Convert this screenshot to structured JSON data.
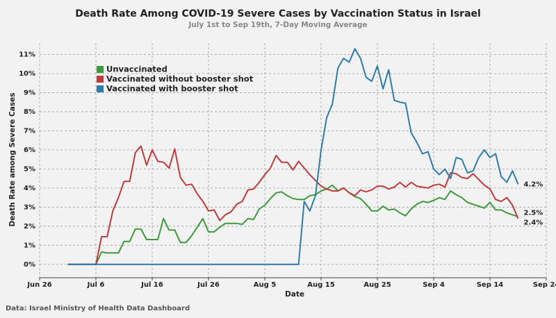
{
  "chart_data": {
    "type": "line",
    "title": "Death Rate Among COVID-19 Severe Cases by Vaccination Status in Israel",
    "subtitle": "July 1st to Sep 19th, 7-Day Moving Average",
    "x_label": "Date",
    "y_label": "Death Rate among Severe Cases",
    "source": "Data: Israel Ministry of Health Data Dashboard",
    "grid": true,
    "legend": "upper left",
    "xlim": [
      "Jun 26",
      "Sep 24"
    ],
    "xticks": [
      "Jun 26",
      "Jul 6",
      "Jul 16",
      "Jul 26",
      "Aug 5",
      "Aug 15",
      "Aug 25",
      "Sep 4",
      "Sep 14",
      "Sep 24"
    ],
    "ylim": [
      -0.7,
      11.6
    ],
    "yticks": [
      {
        "value": 0,
        "label": "0%"
      },
      {
        "value": 1,
        "label": "1%"
      },
      {
        "value": 2,
        "label": "2%"
      },
      {
        "value": 3,
        "label": "3%"
      },
      {
        "value": 4,
        "label": "4%"
      },
      {
        "value": 5,
        "label": "5%"
      },
      {
        "value": 6,
        "label": "6%"
      },
      {
        "value": 7,
        "label": "7%"
      },
      {
        "value": 8,
        "label": "8%"
      },
      {
        "value": 9,
        "label": "9%"
      },
      {
        "value": 10,
        "label": "10%"
      },
      {
        "value": 11,
        "label": "11%"
      }
    ],
    "x": [
      "Jul 1",
      "Jul 2",
      "Jul 3",
      "Jul 4",
      "Jul 5",
      "Jul 6",
      "Jul 7",
      "Jul 8",
      "Jul 9",
      "Jul 10",
      "Jul 11",
      "Jul 12",
      "Jul 13",
      "Jul 14",
      "Jul 15",
      "Jul 16",
      "Jul 17",
      "Jul 18",
      "Jul 19",
      "Jul 20",
      "Jul 21",
      "Jul 22",
      "Jul 23",
      "Jul 24",
      "Jul 25",
      "Jul 26",
      "Jul 27",
      "Jul 28",
      "Jul 29",
      "Jul 30",
      "Jul 31",
      "Aug 1",
      "Aug 2",
      "Aug 3",
      "Aug 4",
      "Aug 5",
      "Aug 6",
      "Aug 7",
      "Aug 8",
      "Aug 9",
      "Aug 10",
      "Aug 11",
      "Aug 12",
      "Aug 13",
      "Aug 14",
      "Aug 15",
      "Aug 16",
      "Aug 17",
      "Aug 18",
      "Aug 19",
      "Aug 20",
      "Aug 21",
      "Aug 22",
      "Aug 23",
      "Aug 24",
      "Aug 25",
      "Aug 26",
      "Aug 27",
      "Aug 28",
      "Aug 29",
      "Aug 30",
      "Aug 31",
      "Sep 1",
      "Sep 2",
      "Sep 3",
      "Sep 4",
      "Sep 5",
      "Sep 6",
      "Sep 7",
      "Sep 8",
      "Sep 9",
      "Sep 10",
      "Sep 11",
      "Sep 12",
      "Sep 13",
      "Sep 14",
      "Sep 15",
      "Sep 16",
      "Sep 17",
      "Sep 18",
      "Sep 19"
    ],
    "series": [
      {
        "name": "Unvaccinated",
        "color": "#3c9a3c",
        "end_label": "2.5%",
        "values": [
          0,
          0,
          0,
          0,
          0,
          0,
          0.65,
          0.6,
          0.6,
          0.6,
          1.2,
          1.2,
          1.85,
          1.85,
          1.3,
          1.3,
          1.3,
          2.4,
          1.8,
          1.8,
          1.15,
          1.15,
          1.5,
          1.95,
          2.4,
          1.7,
          1.7,
          1.95,
          2.15,
          2.15,
          2.15,
          2.1,
          2.4,
          2.35,
          2.9,
          3.1,
          3.45,
          3.75,
          3.8,
          3.6,
          3.45,
          3.4,
          3.4,
          3.6,
          3.65,
          3.85,
          3.95,
          4.15,
          3.85,
          4.0,
          3.75,
          3.55,
          3.45,
          3.15,
          2.8,
          2.8,
          3.05,
          2.85,
          2.9,
          2.7,
          2.55,
          2.9,
          3.15,
          3.3,
          3.25,
          3.35,
          3.5,
          3.4,
          3.85,
          3.65,
          3.5,
          3.25,
          3.15,
          3.05,
          2.95,
          3.25,
          2.85,
          2.85,
          2.7,
          2.6,
          2.5
        ]
      },
      {
        "name": "Vaccinated without booster shot",
        "color": "#c0393b",
        "end_label": "2.4%",
        "values": [
          0,
          0,
          0,
          0,
          0,
          0,
          1.45,
          1.45,
          2.8,
          3.5,
          4.35,
          4.35,
          5.85,
          6.2,
          5.2,
          6.0,
          5.4,
          5.35,
          5.05,
          6.05,
          4.55,
          4.15,
          4.2,
          3.7,
          3.3,
          2.8,
          2.85,
          2.3,
          2.6,
          2.75,
          3.15,
          3.3,
          3.9,
          3.95,
          4.3,
          4.7,
          5.05,
          5.7,
          5.35,
          5.35,
          4.95,
          5.4,
          5.05,
          4.7,
          4.4,
          4.1,
          3.95,
          3.85,
          3.85,
          4.0,
          3.75,
          3.6,
          3.9,
          3.8,
          3.9,
          4.1,
          4.1,
          3.95,
          4.05,
          4.3,
          4.05,
          4.3,
          4.1,
          4.05,
          4.0,
          4.15,
          4.2,
          4.05,
          4.8,
          4.75,
          4.55,
          4.5,
          4.75,
          4.45,
          4.15,
          3.95,
          3.4,
          3.3,
          3.5,
          3.1,
          2.4
        ]
      },
      {
        "name": "Vaccinated with booster shot",
        "color": "#2e7bab",
        "end_label": "4.2%",
        "values": [
          0,
          0,
          0,
          0,
          0,
          0,
          0,
          0,
          0,
          0,
          0,
          0,
          0,
          0,
          0,
          0,
          0,
          0,
          0,
          0,
          0,
          0,
          0,
          0,
          0,
          0,
          0,
          0,
          0,
          0,
          0,
          0,
          0,
          0,
          0,
          0,
          0,
          0,
          0,
          0,
          0,
          0,
          3.3,
          2.8,
          3.6,
          6.0,
          7.7,
          8.4,
          10.3,
          10.8,
          10.6,
          11.3,
          10.8,
          9.8,
          9.6,
          10.4,
          9.2,
          10.2,
          8.6,
          8.5,
          8.45,
          6.9,
          6.4,
          5.8,
          5.9,
          5.0,
          4.7,
          5.0,
          4.5,
          5.6,
          5.5,
          4.8,
          4.9,
          5.6,
          6.0,
          5.6,
          5.8,
          4.6,
          4.3,
          4.9,
          4.2
        ]
      }
    ]
  }
}
